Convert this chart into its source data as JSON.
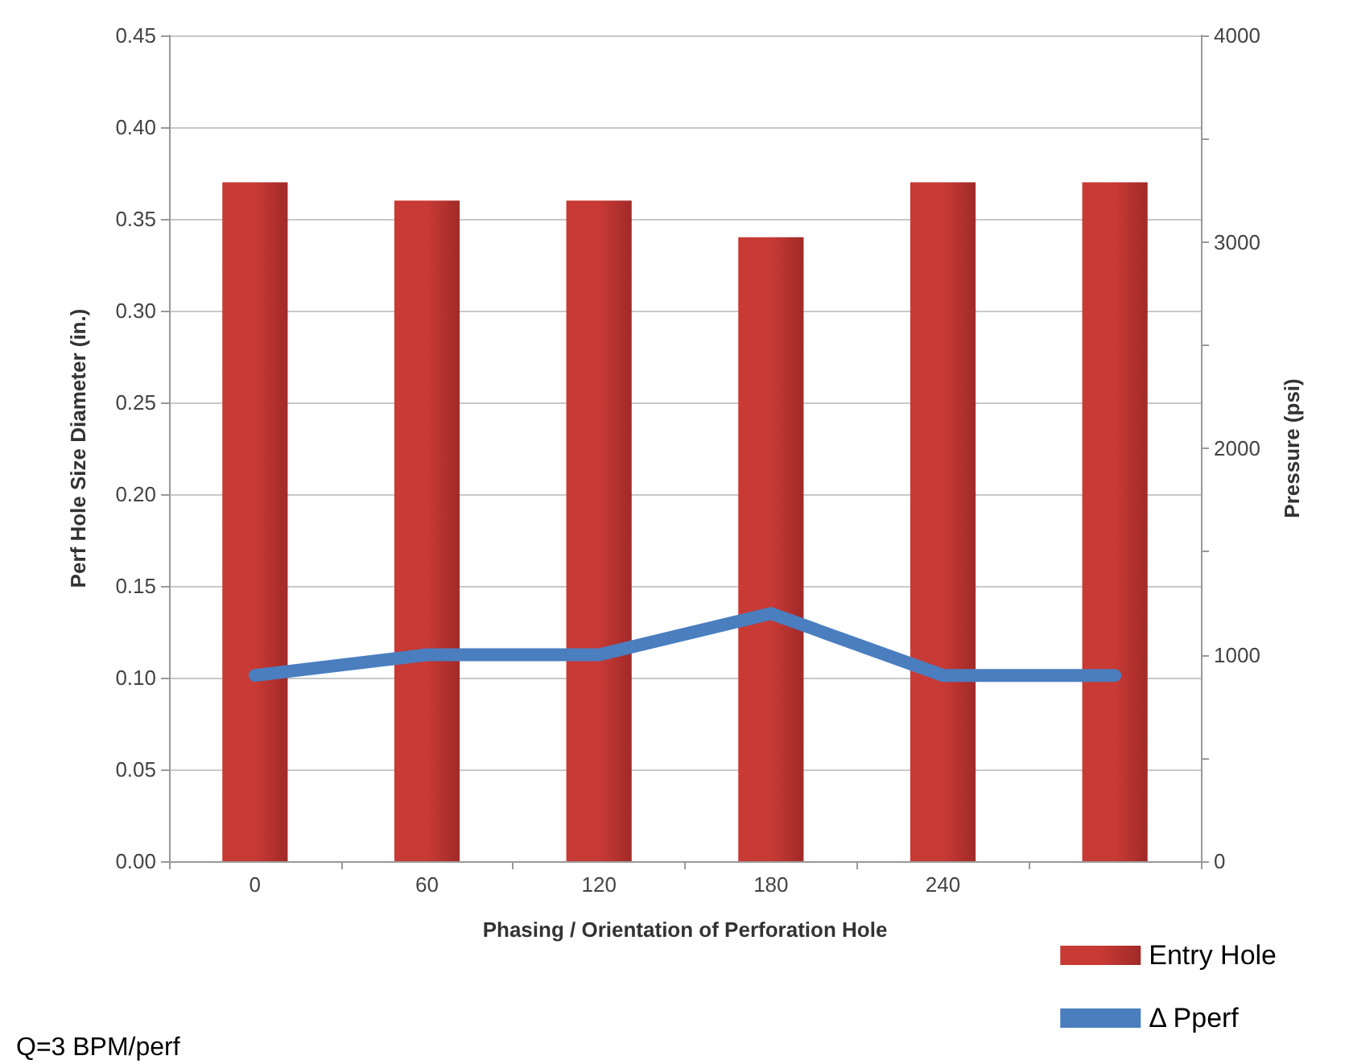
{
  "chart_data": {
    "type": "bar",
    "xlabel": "Phasing / Orientation of Perforation Hole",
    "ylabel": "Perf Hole Size Diameter (in.)",
    "y2label": "Pressure (psi)",
    "categories": [
      "0",
      "60",
      "120",
      "180",
      "240",
      null
    ],
    "series": [
      {
        "name": "Entry Hole",
        "color": "#c83a35",
        "values": [
          0.37,
          0.36,
          0.36,
          0.34,
          0.37,
          0.37
        ]
      },
      {
        "name": "Δ Pperf",
        "type": "line",
        "axis": "y2",
        "color": "#4a7ebf",
        "values": [
          900,
          1000,
          1000,
          1200,
          900,
          900
        ]
      }
    ],
    "ylim": [
      0,
      0.45
    ],
    "yticks": [
      {
        "value": 0,
        "label": "0.00"
      },
      0.05,
      {
        "value": 0.1,
        "label": "0.10"
      },
      0.15,
      {
        "value": 0.2,
        "label": "0.20"
      },
      0.25,
      {
        "value": 0.3,
        "label": "0.30"
      },
      0.35,
      {
        "value": 0.4,
        "label": "0.40"
      },
      0.45
    ],
    "y2lim": [
      0,
      4000
    ],
    "y2ticks": [
      0,
      {
        "value": 500,
        "label": null
      },
      1000,
      {
        "value": 1500,
        "label": null
      },
      2000,
      {
        "value": 2500,
        "label": null
      },
      3000,
      {
        "value": 3500,
        "label": null
      },
      4000
    ],
    "grid": "y",
    "legend": "bottom right",
    "line_style": "solid",
    "annotations": [
      "Q=3 BPM/perf"
    ]
  }
}
